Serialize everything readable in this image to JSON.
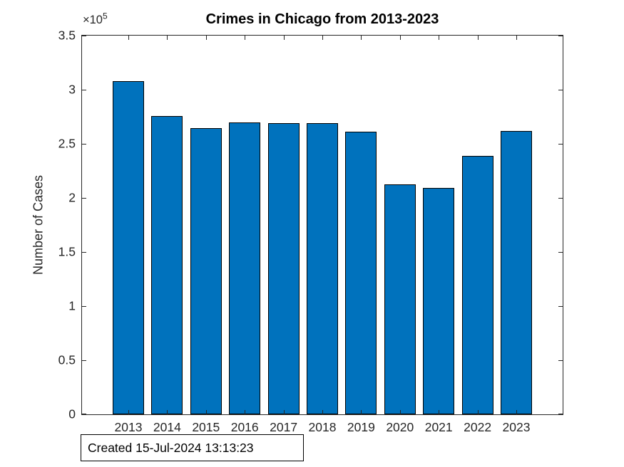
{
  "chart_data": {
    "type": "bar",
    "title": "Crimes in Chicago from 2013-2023",
    "categories": [
      "2013",
      "2014",
      "2015",
      "2016",
      "2017",
      "2018",
      "2019",
      "2020",
      "2021",
      "2022",
      "2023"
    ],
    "values": [
      307700,
      275500,
      264700,
      269900,
      268900,
      269200,
      261100,
      212200,
      208900,
      238800,
      262000
    ],
    "xlabel": "",
    "ylabel": "Number of Cases",
    "ylim": [
      0,
      350000
    ],
    "ytick_values": [
      0,
      50000,
      100000,
      150000,
      200000,
      250000,
      300000,
      350000
    ],
    "ytick_labels": [
      "0",
      "0.5",
      "1",
      "1.5",
      "2",
      "2.5",
      "3",
      "3.5"
    ],
    "y_exponent_base": "×10",
    "y_exponent_power": "5",
    "grid": false,
    "legend": "none",
    "bar_color": "#0072BD",
    "bar_edge_color": "#000000",
    "axis_color": "#262626",
    "annotation": "Created 15-Jul-2024 13:13:23"
  }
}
